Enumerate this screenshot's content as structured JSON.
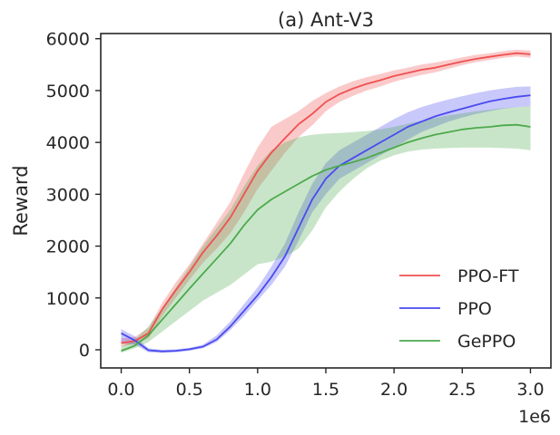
{
  "chart_data": {
    "type": "line",
    "title": "(a) Ant-V3",
    "xlabel": "",
    "ylabel": "Reward",
    "x_offset_label": "1e6",
    "xlim": [
      -0.15,
      3.15
    ],
    "ylim": [
      -350,
      6100
    ],
    "xticks": [
      0.0,
      0.5,
      1.0,
      1.5,
      2.0,
      2.5,
      3.0
    ],
    "xtick_labels": [
      "0.0",
      "0.5",
      "1.0",
      "1.5",
      "2.0",
      "2.5",
      "3.0"
    ],
    "yticks": [
      0,
      1000,
      2000,
      3000,
      4000,
      5000,
      6000
    ],
    "ytick_labels": [
      "0",
      "1000",
      "2000",
      "3000",
      "4000",
      "5000",
      "6000"
    ],
    "grid": false,
    "legend_position": "lower-right",
    "series": [
      {
        "name": "PPO-FT",
        "color": "#f05050",
        "x": [
          0,
          0.1,
          0.2,
          0.3,
          0.4,
          0.5,
          0.6,
          0.7,
          0.8,
          0.9,
          1.0,
          1.1,
          1.2,
          1.3,
          1.4,
          1.5,
          1.6,
          1.7,
          1.8,
          1.9,
          2.0,
          2.1,
          2.2,
          2.3,
          2.4,
          2.5,
          2.6,
          2.7,
          2.8,
          2.9,
          3.0
        ],
        "y": [
          130,
          170,
          320,
          780,
          1150,
          1500,
          1880,
          2200,
          2550,
          3000,
          3450,
          3800,
          4080,
          4350,
          4550,
          4780,
          4930,
          5040,
          5130,
          5200,
          5280,
          5340,
          5400,
          5440,
          5500,
          5560,
          5610,
          5650,
          5690,
          5720,
          5700
        ],
        "lower": [
          60,
          110,
          220,
          650,
          1000,
          1350,
          1680,
          1950,
          2250,
          2650,
          3100,
          3450,
          3800,
          4100,
          4330,
          4600,
          4780,
          4900,
          5000,
          5080,
          5170,
          5240,
          5300,
          5350,
          5420,
          5490,
          5550,
          5590,
          5630,
          5660,
          5630
        ],
        "upper": [
          220,
          250,
          420,
          900,
          1300,
          1650,
          2050,
          2450,
          2850,
          3400,
          3900,
          4300,
          4450,
          4600,
          4800,
          4950,
          5080,
          5180,
          5260,
          5320,
          5390,
          5440,
          5500,
          5540,
          5590,
          5640,
          5690,
          5720,
          5760,
          5790,
          5770
        ]
      },
      {
        "name": "PPO",
        "color": "#4a4af0",
        "x": [
          0,
          0.1,
          0.2,
          0.3,
          0.4,
          0.5,
          0.6,
          0.7,
          0.8,
          0.9,
          1.0,
          1.1,
          1.2,
          1.3,
          1.4,
          1.5,
          1.6,
          1.7,
          1.8,
          1.9,
          2.0,
          2.1,
          2.2,
          2.3,
          2.4,
          2.5,
          2.6,
          2.7,
          2.8,
          2.9,
          3.0
        ],
        "y": [
          320,
          180,
          -10,
          -30,
          -20,
          10,
          60,
          200,
          450,
          750,
          1050,
          1400,
          1800,
          2350,
          2900,
          3300,
          3550,
          3700,
          3850,
          4000,
          4150,
          4300,
          4400,
          4500,
          4580,
          4650,
          4720,
          4790,
          4840,
          4880,
          4910
        ],
        "lower": [
          120,
          100,
          -50,
          -60,
          -50,
          -20,
          30,
          150,
          380,
          650,
          950,
          1250,
          1600,
          2100,
          2650,
          3000,
          3300,
          3450,
          3600,
          3750,
          3900,
          4050,
          4200,
          4300,
          4400,
          4480,
          4550,
          4600,
          4650,
          4680,
          4700
        ],
        "upper": [
          400,
          260,
          30,
          0,
          10,
          40,
          100,
          280,
          550,
          880,
          1200,
          1600,
          2050,
          2650,
          3200,
          3600,
          3850,
          4000,
          4150,
          4300,
          4450,
          4580,
          4680,
          4760,
          4830,
          4890,
          4950,
          5000,
          5040,
          5070,
          5080
        ]
      },
      {
        "name": "GePPO",
        "color": "#4caa4c",
        "x": [
          0,
          0.1,
          0.2,
          0.3,
          0.4,
          0.5,
          0.6,
          0.7,
          0.8,
          0.9,
          1.0,
          1.1,
          1.2,
          1.3,
          1.4,
          1.5,
          1.6,
          1.7,
          1.8,
          1.9,
          2.0,
          2.1,
          2.2,
          2.3,
          2.4,
          2.5,
          2.6,
          2.7,
          2.8,
          2.9,
          3.0
        ],
        "y": [
          -20,
          80,
          280,
          580,
          880,
          1180,
          1470,
          1760,
          2050,
          2400,
          2700,
          2900,
          3050,
          3200,
          3350,
          3470,
          3550,
          3620,
          3700,
          3800,
          3900,
          4000,
          4080,
          4150,
          4200,
          4250,
          4280,
          4300,
          4330,
          4340,
          4300
        ],
        "lower": [
          -60,
          30,
          150,
          350,
          550,
          750,
          950,
          1100,
          1250,
          1450,
          1650,
          1700,
          1800,
          1950,
          2300,
          2750,
          3050,
          3300,
          3500,
          3650,
          3750,
          3820,
          3860,
          3880,
          3890,
          3900,
          3900,
          3900,
          3890,
          3880,
          3850
        ],
        "upper": [
          60,
          200,
          450,
          800,
          1200,
          1600,
          2000,
          2350,
          2700,
          3150,
          3550,
          3850,
          4000,
          4100,
          4150,
          4170,
          4180,
          4200,
          4220,
          4250,
          4300,
          4360,
          4420,
          4470,
          4520,
          4560,
          4600,
          4630,
          4660,
          4680,
          4700
        ]
      }
    ]
  }
}
